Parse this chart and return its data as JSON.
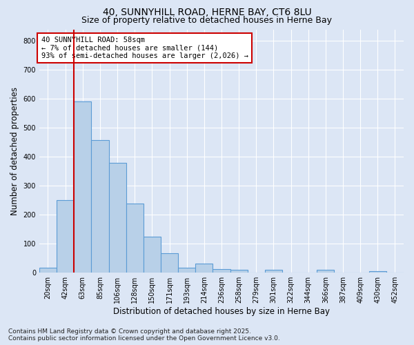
{
  "title_line1": "40, SUNNYHILL ROAD, HERNE BAY, CT6 8LU",
  "title_line2": "Size of property relative to detached houses in Herne Bay",
  "xlabel": "Distribution of detached houses by size in Herne Bay",
  "ylabel": "Number of detached properties",
  "categories": [
    "20sqm",
    "42sqm",
    "63sqm",
    "85sqm",
    "106sqm",
    "128sqm",
    "150sqm",
    "171sqm",
    "193sqm",
    "214sqm",
    "236sqm",
    "258sqm",
    "279sqm",
    "301sqm",
    "322sqm",
    "344sqm",
    "366sqm",
    "387sqm",
    "409sqm",
    "430sqm",
    "452sqm"
  ],
  "values": [
    17,
    250,
    590,
    458,
    378,
    238,
    123,
    67,
    17,
    30,
    12,
    10,
    0,
    10,
    0,
    0,
    8,
    0,
    0,
    5,
    0
  ],
  "bar_color": "#b8d0e8",
  "bar_edge_color": "#5b9bd5",
  "red_line_x": 1.5,
  "annotation_title": "40 SUNNYHILL ROAD: 58sqm",
  "annotation_line2": "← 7% of detached houses are smaller (144)",
  "annotation_line3": "93% of semi-detached houses are larger (2,026) →",
  "annotation_box_color": "#ffffff",
  "annotation_box_edge": "#cc0000",
  "red_line_color": "#cc0000",
  "ylim": [
    0,
    840
  ],
  "yticks": [
    0,
    100,
    200,
    300,
    400,
    500,
    600,
    700,
    800
  ],
  "background_color": "#dce6f5",
  "plot_bg_color": "#dce6f5",
  "grid_color": "#ffffff",
  "footnote_line1": "Contains HM Land Registry data © Crown copyright and database right 2025.",
  "footnote_line2": "Contains public sector information licensed under the Open Government Licence v3.0.",
  "title_fontsize": 10,
  "subtitle_fontsize": 9,
  "axis_label_fontsize": 8.5,
  "tick_fontsize": 7,
  "footnote_fontsize": 6.5,
  "annotation_fontsize": 7.5
}
